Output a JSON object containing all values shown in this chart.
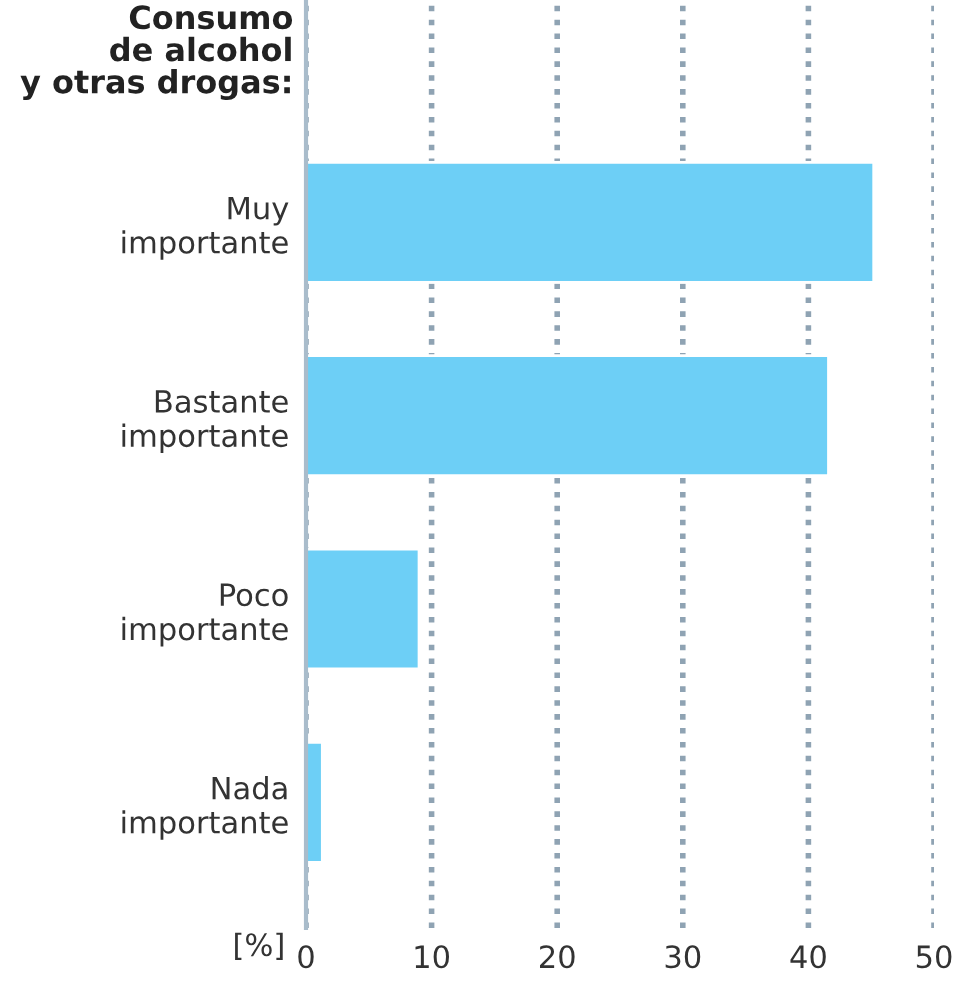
{
  "chart_data": {
    "type": "bar",
    "orientation": "horizontal",
    "title": "Consumo\nde alcohol\ny otras drogas:",
    "xlabel": "[%]",
    "categories": [
      "Muy\nimportante",
      "Bastante\nimportante",
      "Poco\nimportante",
      "Nada\nimportante"
    ],
    "values": [
      45.2,
      41.6,
      9.0,
      1.3
    ],
    "color": "#6dcff6",
    "xlim": [
      0,
      50
    ],
    "xticks": [
      0,
      10,
      20,
      30,
      40,
      50
    ],
    "grid": "x"
  }
}
